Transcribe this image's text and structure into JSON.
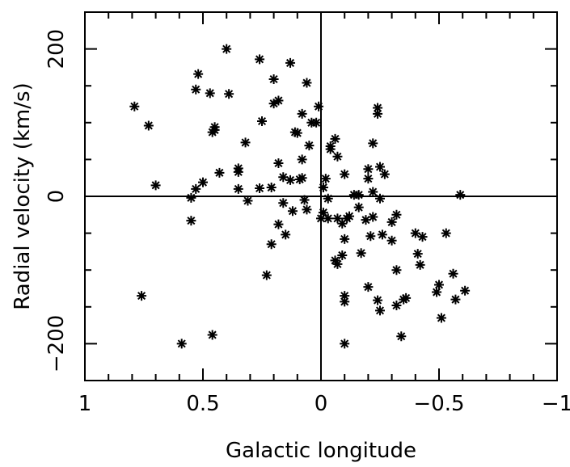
{
  "chart_data": {
    "type": "scatter",
    "title": "",
    "xlabel": "Galactic longitude",
    "ylabel": "Radial velocity (km/s)",
    "xlim": [
      1,
      -1
    ],
    "ylim": [
      -250,
      250
    ],
    "x_reversed": true,
    "x_ticks": [
      1,
      0.5,
      0,
      -0.5,
      -1
    ],
    "x_tick_labels": [
      "1",
      "0.5",
      "0",
      "−0.5",
      "−1"
    ],
    "y_ticks": [
      200,
      0,
      -200
    ],
    "y_tick_labels": [
      "200",
      "0",
      "−200"
    ],
    "marker": "asterisk",
    "reference_lines": {
      "x": 0,
      "y": 0
    },
    "grid": false,
    "legend": "none",
    "series": [
      {
        "points": [
          [
            0.4,
            200
          ],
          [
            0.26,
            186
          ],
          [
            0.13,
            181
          ],
          [
            0.52,
            166
          ],
          [
            0.53,
            145
          ],
          [
            0.47,
            140
          ],
          [
            0.39,
            139
          ],
          [
            0.2,
            159
          ],
          [
            0.06,
            154
          ],
          [
            0.79,
            122
          ],
          [
            0.2,
            126
          ],
          [
            0.18,
            130
          ],
          [
            0.1,
            86
          ],
          [
            0.11,
            87
          ],
          [
            0.08,
            112
          ],
          [
            0.01,
            122
          ],
          [
            0.04,
            100
          ],
          [
            0.02,
            100
          ],
          [
            0.73,
            96
          ],
          [
            0.45,
            94
          ],
          [
            0.45,
            90
          ],
          [
            0.46,
            87
          ],
          [
            0.25,
            102
          ],
          [
            0.32,
            73
          ],
          [
            0.7,
            15
          ],
          [
            0.53,
            10
          ],
          [
            0.5,
            19
          ],
          [
            0.43,
            32
          ],
          [
            0.35,
            38
          ],
          [
            0.35,
            33
          ],
          [
            0.35,
            10
          ],
          [
            0.26,
            11
          ],
          [
            0.21,
            12
          ],
          [
            0.18,
            45
          ],
          [
            0.16,
            26
          ],
          [
            0.13,
            22
          ],
          [
            0.09,
            23
          ],
          [
            0.08,
            50
          ],
          [
            0.08,
            25
          ],
          [
            0.05,
            69
          ],
          [
            -0.04,
            68
          ],
          [
            -0.04,
            64
          ],
          [
            -0.06,
            78
          ],
          [
            -0.07,
            54
          ],
          [
            -0.02,
            24
          ],
          [
            -0.01,
            12
          ],
          [
            0.55,
            -2
          ],
          [
            0.55,
            -33
          ],
          [
            0.31,
            -6
          ],
          [
            0.16,
            -9
          ],
          [
            0.07,
            -5
          ],
          [
            0.06,
            -18
          ],
          [
            0.0,
            -30
          ],
          [
            -0.01,
            -22
          ],
          [
            -0.03,
            -3
          ],
          [
            -0.07,
            -30
          ],
          [
            -0.09,
            -37
          ],
          [
            -0.1,
            30
          ],
          [
            -0.14,
            2
          ],
          [
            -0.16,
            2
          ],
          [
            -0.2,
            37
          ],
          [
            -0.2,
            24
          ],
          [
            -0.22,
            6
          ],
          [
            -0.25,
            -3
          ],
          [
            -0.25,
            40
          ],
          [
            -0.27,
            30
          ],
          [
            -0.22,
            72
          ],
          [
            -0.24,
            120
          ],
          [
            -0.24,
            112
          ],
          [
            -0.16,
            -15
          ],
          [
            -0.19,
            -32
          ],
          [
            -0.22,
            -28
          ],
          [
            -0.26,
            -52
          ],
          [
            -0.32,
            -25
          ],
          [
            -0.3,
            -35
          ],
          [
            -0.11,
            -30
          ],
          [
            -0.1,
            -58
          ],
          [
            -0.06,
            -87
          ],
          [
            -0.07,
            -92
          ],
          [
            -0.09,
            -80
          ],
          [
            -0.17,
            -77
          ],
          [
            -0.21,
            -54
          ],
          [
            -0.12,
            -27
          ],
          [
            -0.03,
            -30
          ],
          [
            0.12,
            -20
          ],
          [
            0.15,
            -52
          ],
          [
            0.18,
            -38
          ],
          [
            0.21,
            -65
          ],
          [
            0.23,
            -107
          ],
          [
            0.59,
            -200
          ],
          [
            0.76,
            -135
          ],
          [
            0.46,
            -188
          ],
          [
            -0.1,
            -135
          ],
          [
            -0.1,
            -143
          ],
          [
            -0.1,
            -200
          ],
          [
            -0.2,
            -123
          ],
          [
            -0.24,
            -141
          ],
          [
            -0.25,
            -155
          ],
          [
            -0.3,
            -60
          ],
          [
            -0.32,
            -100
          ],
          [
            -0.35,
            -140
          ],
          [
            -0.36,
            -138
          ],
          [
            -0.4,
            -50
          ],
          [
            -0.41,
            -78
          ],
          [
            -0.42,
            -93
          ],
          [
            -0.43,
            -55
          ],
          [
            -0.49,
            -130
          ],
          [
            -0.5,
            -120
          ],
          [
            -0.51,
            -165
          ],
          [
            -0.53,
            -50
          ],
          [
            -0.56,
            -105
          ],
          [
            -0.57,
            -140
          ],
          [
            -0.59,
            2
          ],
          [
            -0.61,
            -128
          ],
          [
            -0.34,
            -190
          ],
          [
            -0.32,
            -148
          ]
        ]
      }
    ]
  }
}
